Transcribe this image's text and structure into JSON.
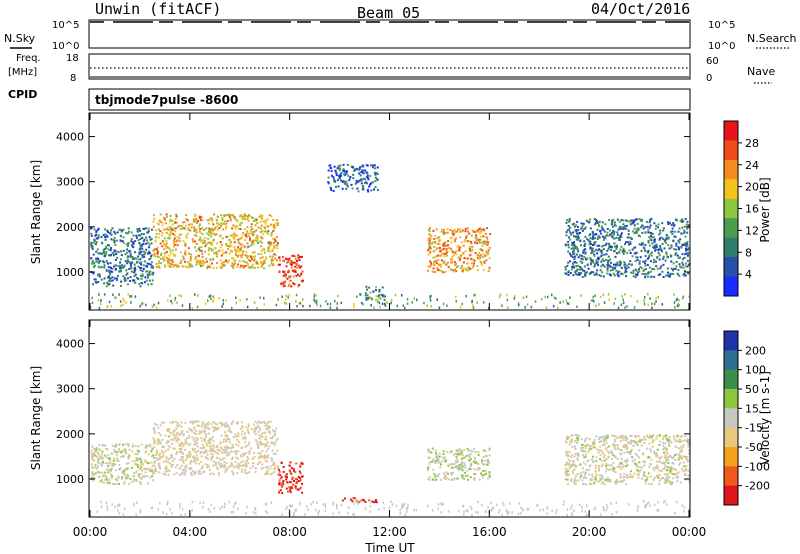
{
  "header": {
    "station": "Unwin (fitACF)",
    "beam": "Beam 05",
    "date": "04/Oct/2016"
  },
  "noise_panel": {
    "left_label": "N.Sky",
    "right_label": "N.Search",
    "ticks": [
      "10^5",
      "10^0"
    ]
  },
  "freq_panel": {
    "left_label_1": "Freq.",
    "left_label_2": "[MHz]",
    "left_ticks": [
      "18",
      "8"
    ],
    "right_label": "Nave",
    "right_ticks": [
      "60",
      "0"
    ],
    "cpid_label": "CPID"
  },
  "cpid_text": "tbjmode7pulse  -8600",
  "colors": {
    "power_scale": [
      "#1a2bff",
      "#2950a8",
      "#2e7e6c",
      "#4c9b4f",
      "#8ec63f",
      "#f3c21b",
      "#f68b1f",
      "#ef4b1c",
      "#e8141b"
    ],
    "velocity_scale": [
      "#2233aa",
      "#2e6e8e",
      "#3c8f4b",
      "#8dc63f",
      "#c8c8c0",
      "#e8c880",
      "#f3a21b",
      "#f05a1c",
      "#e0141b"
    ]
  },
  "chart_data": [
    {
      "type": "heatmap",
      "title": "Power",
      "xlabel": "",
      "ylabel": "Slant Range [km]",
      "x_ticks": [
        "00:00",
        "04:00",
        "08:00",
        "12:00",
        "16:00",
        "20:00",
        "00:00"
      ],
      "y_ticks": [
        "1000",
        "2000",
        "3000",
        "4000"
      ],
      "ylim": [
        180,
        4500
      ],
      "colorbar": {
        "label": "Power [dB]",
        "ticks": [
          "4",
          "8",
          "12",
          "16",
          "20",
          "24",
          "28"
        ],
        "range": [
          0,
          32
        ]
      },
      "echo_regions": [
        {
          "t_start": 0.0,
          "t_end": 2.5,
          "r_low": 700,
          "r_high": 2000,
          "mean_power": 8
        },
        {
          "t_start": 2.5,
          "t_end": 7.5,
          "r_low": 1100,
          "r_high": 2300,
          "mean_power": 20
        },
        {
          "t_start": 7.5,
          "t_end": 8.5,
          "r_low": 700,
          "r_high": 1400,
          "mean_power": 28
        },
        {
          "t_start": 9.5,
          "t_end": 11.5,
          "r_low": 2800,
          "r_high": 3400,
          "mean_power": 6
        },
        {
          "t_start": 11.0,
          "t_end": 11.8,
          "r_low": 400,
          "r_high": 700,
          "mean_power": 10
        },
        {
          "t_start": 13.5,
          "t_end": 16.0,
          "r_low": 1000,
          "r_high": 2000,
          "mean_power": 22
        },
        {
          "t_start": 19.0,
          "t_end": 24.0,
          "r_low": 900,
          "r_high": 2200,
          "mean_power": 8
        }
      ]
    },
    {
      "type": "heatmap",
      "title": "Velocity",
      "xlabel": "Time UT",
      "ylabel": "Slant Range [km]",
      "x_ticks": [
        "00:00",
        "04:00",
        "08:00",
        "12:00",
        "16:00",
        "20:00",
        "00:00"
      ],
      "y_ticks": [
        "1000",
        "2000",
        "3000",
        "4000"
      ],
      "ylim": [
        180,
        4500
      ],
      "colorbar": {
        "label": "Velocity [m s-1]",
        "ticks": [
          "200",
          "100",
          "50",
          "15",
          "-15",
          "-50",
          "-100",
          "-200"
        ],
        "range": [
          -300,
          300
        ]
      },
      "echo_regions": [
        {
          "t_start": 0.0,
          "t_end": 2.5,
          "r_low": 900,
          "r_high": 1800,
          "mean_velocity": 0
        },
        {
          "t_start": 2.5,
          "t_end": 7.5,
          "r_low": 1100,
          "r_high": 2300,
          "mean_velocity": -30
        },
        {
          "t_start": 7.5,
          "t_end": 8.5,
          "r_low": 700,
          "r_high": 1400,
          "mean_velocity": -250
        },
        {
          "t_start": 10.0,
          "t_end": 11.5,
          "r_low": 500,
          "r_high": 600,
          "mean_velocity": -250
        },
        {
          "t_start": 13.5,
          "t_end": 16.0,
          "r_low": 1000,
          "r_high": 1700,
          "mean_velocity": 20
        },
        {
          "t_start": 19.0,
          "t_end": 24.0,
          "r_low": 900,
          "r_high": 2000,
          "mean_velocity": -10
        }
      ]
    }
  ]
}
